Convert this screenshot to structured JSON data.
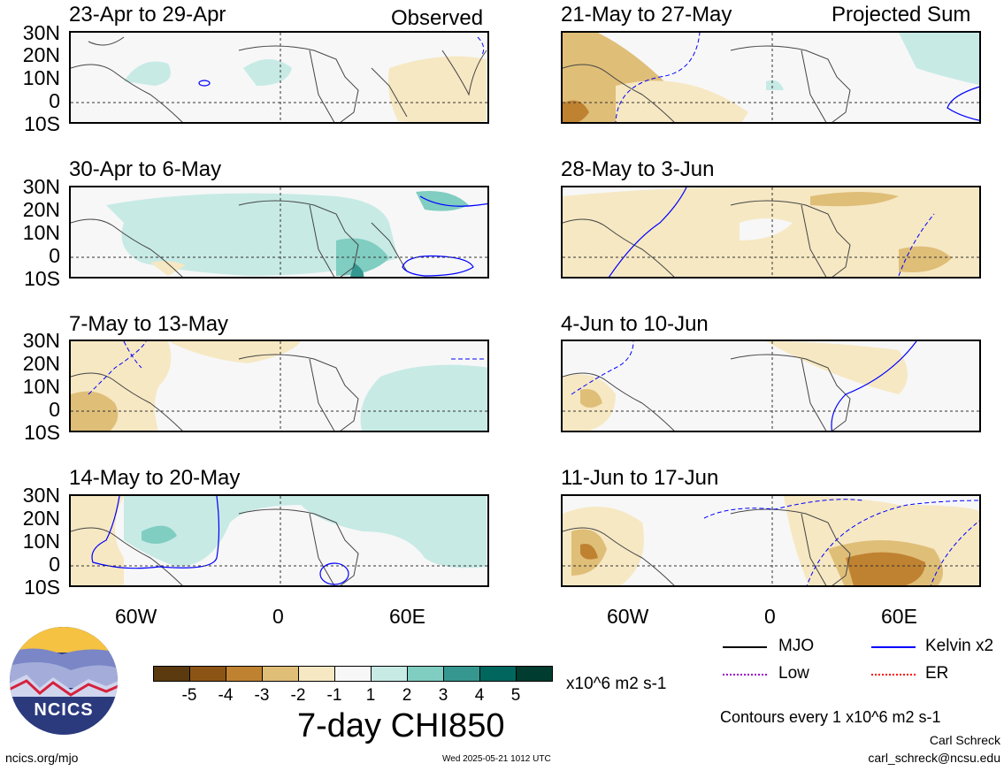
{
  "header": {
    "left_label": "Observed",
    "right_label": "Projected Sum"
  },
  "latitude_labels": [
    "30N",
    "20N",
    "10N",
    "0",
    "10S"
  ],
  "longitude_labels": [
    "60W",
    "0",
    "60E"
  ],
  "panels": [
    {
      "title": "23-Apr to 29-Apr"
    },
    {
      "title": "30-Apr to 6-May"
    },
    {
      "title": "7-May to 13-May"
    },
    {
      "title": "14-May to 20-May"
    },
    {
      "title": "21-May to 27-May"
    },
    {
      "title": "28-May to 3-Jun"
    },
    {
      "title": "4-Jun to 10-Jun"
    },
    {
      "title": "11-Jun to 17-Jun"
    }
  ],
  "colorbar": {
    "labels": [
      "-5",
      "-4",
      "-3",
      "-2",
      "-1",
      "1",
      "2",
      "3",
      "4",
      "5"
    ],
    "colors": [
      "#5a3a0e",
      "#8c5414",
      "#bf8231",
      "#dfbe78",
      "#f6e8c3",
      "#f7f7f7",
      "#c7eae5",
      "#80cdc1",
      "#35978f",
      "#01665e",
      "#003c30"
    ],
    "units": "x10^6 m2 s-1",
    "title": "7-day CHI850"
  },
  "legend": {
    "items": [
      {
        "label": "MJO",
        "color": "#000000"
      },
      {
        "label": "Kelvin x2",
        "color": "#0000ff"
      },
      {
        "label": "Low",
        "color": "#9900cc"
      },
      {
        "label": "ER",
        "color": "#ff0000"
      }
    ],
    "contour_note": "Contours every 1 x10^6 m2 s-1"
  },
  "logo": {
    "text": "NCICS"
  },
  "footer": {
    "url": "ncics.org/mjo",
    "timestamp": "Wed 2025-05-21 1012 UTC",
    "author": "Carl Schreck",
    "email": "carl_schreck@ncsu.edu"
  }
}
